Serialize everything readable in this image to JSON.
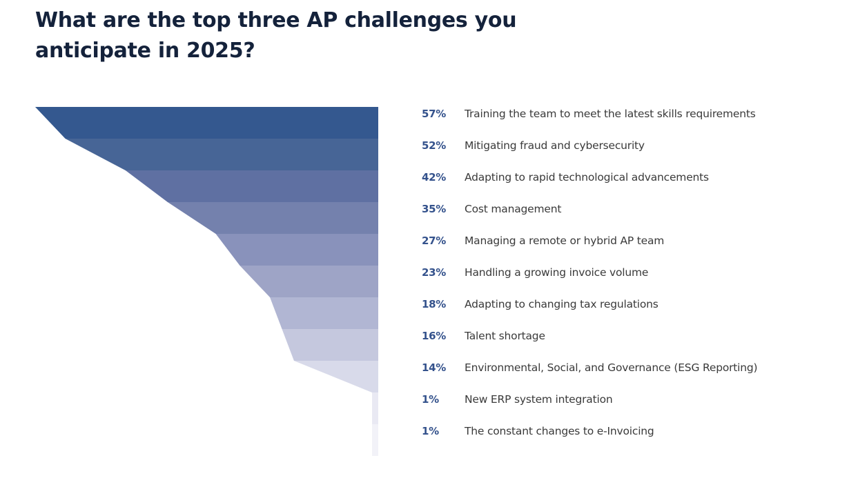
{
  "chart_data": {
    "type": "funnel",
    "title": "What are the top three AP challenges you anticipate in 2025?",
    "unit": "%",
    "categories": [
      "Training the team to meet the latest skills requirements",
      "Mitigating fraud and cybersecurity",
      "Adapting to rapid technological advancements",
      "Cost management",
      "Managing a remote or hybrid AP team",
      "Handling a growing invoice volume",
      "Adapting to changing tax regulations",
      "Talent shortage",
      "Environmental, Social, and Governance (ESG Reporting)",
      "New ERP system integration",
      "The constant changes to e-Invoicing"
    ],
    "values": [
      57,
      52,
      42,
      35,
      27,
      23,
      18,
      16,
      14,
      1,
      1
    ],
    "value_labels": [
      "57%",
      "52%",
      "42%",
      "35%",
      "27%",
      "23%",
      "18%",
      "16%",
      "14%",
      "1%",
      "1%"
    ],
    "colors": [
      "#34588f",
      "#476596",
      "#5f70a2",
      "#7481ad",
      "#8992bb",
      "#9ea4c6",
      "#b1b6d3",
      "#c5c8de",
      "#d8daea",
      "#e9e9f3",
      "#f2f2f8"
    ],
    "legend": "right",
    "grid": false
  },
  "colors": {
    "title": "#14223b",
    "value_label": "#34528c",
    "category_label": "#3a3a3a"
  }
}
